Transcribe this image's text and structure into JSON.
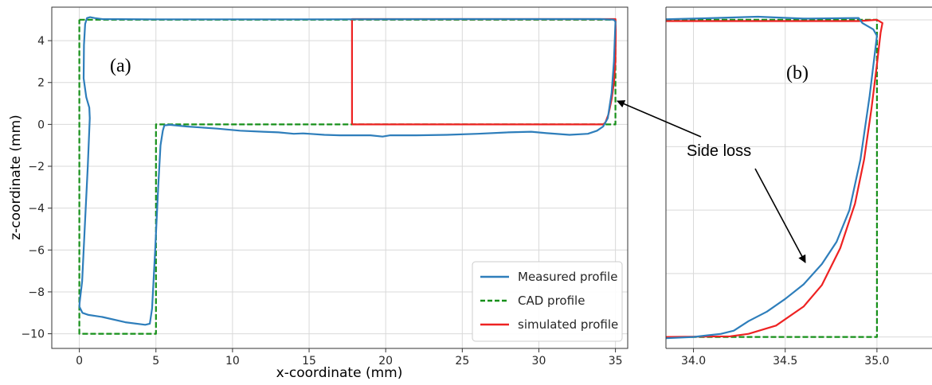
{
  "colors": {
    "measured": "#2e7ebb",
    "cad": "#17901a",
    "simulated": "#ee2222",
    "grid": "#d9d9d9",
    "axis": "#333333"
  },
  "chart_data": [
    {
      "panel": "(a)",
      "type": "line",
      "xlabel": "x-coordinate (mm)",
      "ylabel": "z-coordinate (mm)",
      "xlim": [
        -1.8,
        35.8
      ],
      "ylim": [
        -10.7,
        5.6
      ],
      "xticks": [
        0,
        5,
        10,
        15,
        20,
        25,
        30,
        35
      ],
      "yticks": [
        -10,
        -8,
        -6,
        -4,
        -2,
        0,
        2,
        4
      ],
      "grid": true,
      "legend_position": "lower-right",
      "series": [
        {
          "name": "Measured profile",
          "style": "solid",
          "points": [
            [
              0.0,
              -8.7
            ],
            [
              0.2,
              -9.0
            ],
            [
              0.6,
              -9.1
            ],
            [
              1.5,
              -9.2
            ],
            [
              3.0,
              -9.45
            ],
            [
              4.3,
              -9.57
            ],
            [
              4.6,
              -9.52
            ],
            [
              4.75,
              -8.8
            ],
            [
              4.95,
              -6.0
            ],
            [
              5.15,
              -3.0
            ],
            [
              5.3,
              -1.0
            ],
            [
              5.45,
              -0.3
            ],
            [
              5.55,
              -0.05
            ],
            [
              5.9,
              -0.02
            ],
            [
              7.0,
              -0.1
            ],
            [
              9.0,
              -0.2
            ],
            [
              10.5,
              -0.3
            ],
            [
              12.0,
              -0.35
            ],
            [
              13.0,
              -0.38
            ],
            [
              14.0,
              -0.45
            ],
            [
              14.6,
              -0.43
            ],
            [
              15.0,
              -0.45
            ],
            [
              16.0,
              -0.5
            ],
            [
              17.0,
              -0.52
            ],
            [
              18.0,
              -0.52
            ],
            [
              19.0,
              -0.52
            ],
            [
              19.8,
              -0.58
            ],
            [
              20.3,
              -0.52
            ],
            [
              22.0,
              -0.52
            ],
            [
              24.0,
              -0.5
            ],
            [
              26.0,
              -0.45
            ],
            [
              28.0,
              -0.38
            ],
            [
              29.5,
              -0.35
            ],
            [
              30.5,
              -0.42
            ],
            [
              32.0,
              -0.5
            ],
            [
              33.2,
              -0.45
            ],
            [
              33.8,
              -0.3
            ],
            [
              34.2,
              -0.1
            ],
            [
              34.5,
              0.3
            ],
            [
              34.75,
              1.5
            ],
            [
              34.9,
              3.0
            ],
            [
              34.97,
              4.3
            ],
            [
              35.0,
              4.9
            ],
            [
              34.9,
              5.0
            ],
            [
              34.0,
              5.03
            ],
            [
              25.0,
              5.03
            ],
            [
              15.0,
              5.02
            ],
            [
              5.0,
              5.02
            ],
            [
              1.5,
              5.03
            ],
            [
              1.0,
              5.08
            ],
            [
              0.7,
              5.12
            ],
            [
              0.5,
              5.08
            ],
            [
              0.38,
              4.8
            ],
            [
              0.3,
              3.8
            ],
            [
              0.28,
              2.2
            ],
            [
              0.45,
              1.3
            ],
            [
              0.65,
              0.8
            ],
            [
              0.68,
              0.3
            ],
            [
              0.55,
              -2.0
            ],
            [
              0.35,
              -5.0
            ],
            [
              0.18,
              -7.5
            ],
            [
              0.02,
              -8.5
            ],
            [
              0.0,
              -8.7
            ]
          ]
        },
        {
          "name": "CAD profile",
          "style": "dashed",
          "points": [
            [
              0,
              5
            ],
            [
              35,
              5
            ],
            [
              35,
              0
            ],
            [
              5,
              0
            ],
            [
              5,
              -10
            ],
            [
              0,
              -10
            ],
            [
              0,
              5
            ]
          ]
        },
        {
          "name": "simulated profile",
          "style": "solid",
          "points": [
            [
              17.8,
              0
            ],
            [
              17.8,
              5.03
            ],
            [
              35.0,
              5.03
            ],
            [
              35.02,
              4.5
            ],
            [
              35.0,
              3.0
            ],
            [
              34.9,
              2.0
            ],
            [
              34.75,
              1.2
            ],
            [
              34.55,
              0.5
            ],
            [
              34.35,
              0.1
            ],
            [
              34.2,
              0.0
            ],
            [
              17.8,
              0.0
            ]
          ]
        }
      ]
    },
    {
      "panel": "(b)",
      "type": "line",
      "xlim": [
        33.85,
        35.3
      ],
      "ylim": [
        -0.18,
        5.2
      ],
      "xticks": [
        34.0,
        34.5,
        35.0
      ],
      "xtick_labels": [
        "34.0",
        "34.5",
        "35.0"
      ],
      "yticks": [
        0,
        1,
        2,
        3,
        4,
        5
      ],
      "grid": true,
      "annotation": "Side loss",
      "series": [
        {
          "name": "Measured profile",
          "style": "solid",
          "points": [
            [
              33.85,
              -0.02
            ],
            [
              34.0,
              0.0
            ],
            [
              34.15,
              0.05
            ],
            [
              34.22,
              0.1
            ],
            [
              34.3,
              0.25
            ],
            [
              34.4,
              0.4
            ],
            [
              34.5,
              0.6
            ],
            [
              34.6,
              0.83
            ],
            [
              34.7,
              1.15
            ],
            [
              34.78,
              1.5
            ],
            [
              34.85,
              2.0
            ],
            [
              34.91,
              2.8
            ],
            [
              34.96,
              3.8
            ],
            [
              35.0,
              4.75
            ],
            [
              34.98,
              4.85
            ],
            [
              34.92,
              4.95
            ],
            [
              34.9,
              5.03
            ],
            [
              34.6,
              5.02
            ],
            [
              34.35,
              5.05
            ],
            [
              34.0,
              5.02
            ],
            [
              33.85,
              5.01
            ]
          ]
        },
        {
          "name": "CAD profile",
          "style": "dashed",
          "points": [
            [
              33.85,
              5.0
            ],
            [
              35.0,
              5.0
            ],
            [
              35.0,
              0.0
            ],
            [
              33.85,
              0.0
            ]
          ]
        },
        {
          "name": "simulated profile",
          "style": "solid",
          "points": [
            [
              33.85,
              0.0
            ],
            [
              34.2,
              0.01
            ],
            [
              34.3,
              0.05
            ],
            [
              34.45,
              0.18
            ],
            [
              34.6,
              0.48
            ],
            [
              34.7,
              0.82
            ],
            [
              34.8,
              1.4
            ],
            [
              34.88,
              2.1
            ],
            [
              34.93,
              2.8
            ],
            [
              34.97,
              3.6
            ],
            [
              35.0,
              4.3
            ],
            [
              35.02,
              4.8
            ],
            [
              35.03,
              4.95
            ],
            [
              35.0,
              5.0
            ],
            [
              34.9,
              4.98
            ],
            [
              34.6,
              4.98
            ],
            [
              34.2,
              4.98
            ],
            [
              33.85,
              4.98
            ]
          ]
        }
      ]
    }
  ],
  "annotation_text": "Side loss"
}
